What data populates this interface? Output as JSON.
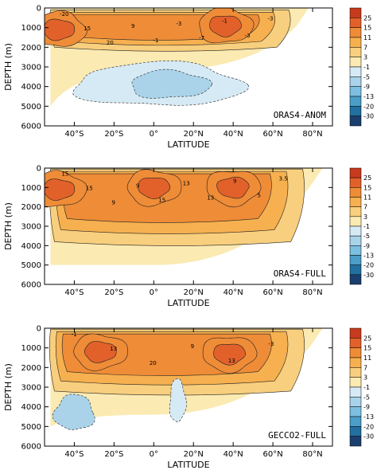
{
  "chart_data": [
    {
      "type": "heatmap",
      "panel_label": "ORAS4-ANOM",
      "xlabel": "LATITUDE",
      "ylabel": "DEPTH (m)",
      "x_range": [
        -55,
        90
      ],
      "y_range": [
        0,
        6000
      ],
      "y_inverted": true,
      "x_ticks": [
        -40,
        -20,
        0,
        20,
        40,
        60,
        80
      ],
      "x_tick_labels": [
        "40°S",
        "20°S",
        "0°",
        "20°N",
        "40°N",
        "60°N",
        "80°N"
      ],
      "y_ticks": [
        0,
        1000,
        2000,
        3000,
        4000,
        5000,
        6000
      ],
      "y_tick_labels": [
        "0",
        "1000",
        "2000",
        "3000",
        "4000",
        "5000",
        "6000"
      ],
      "contour_labels": [
        "-20",
        "15",
        "20",
        "9",
        "-1",
        "-3",
        "-7",
        "-1",
        "-3",
        "-3"
      ],
      "colorbar_levels": [
        "25",
        "15",
        "11",
        "7",
        "3",
        "-1",
        "-5",
        "-9",
        "-13",
        "-20",
        "-30"
      ],
      "features": [
        {
          "kind": "positive",
          "lat": [
            -52,
            68
          ],
          "depth": [
            100,
            2000
          ],
          "peak": 15
        },
        {
          "kind": "core",
          "lat": -48,
          "depth": 1100,
          "value": 20
        },
        {
          "kind": "core",
          "lat": 36,
          "depth": 900,
          "value": 20
        },
        {
          "kind": "negative",
          "lat": [
            -40,
            45
          ],
          "depth": [
            2800,
            5000
          ],
          "value": -5
        },
        {
          "kind": "negative",
          "lat": [
            -12,
            28
          ],
          "depth": [
            3200,
            4600
          ],
          "value": -9
        }
      ]
    },
    {
      "type": "heatmap",
      "panel_label": "ORAS4-FULL",
      "xlabel": "LATITUDE",
      "ylabel": "DEPTH (m)",
      "x_range": [
        -55,
        90
      ],
      "y_range": [
        0,
        6000
      ],
      "y_inverted": true,
      "x_ticks": [
        -40,
        -20,
        0,
        20,
        40,
        60,
        80
      ],
      "x_tick_labels": [
        "40°S",
        "20°S",
        "0°",
        "20°N",
        "40°N",
        "60°N",
        "80°N"
      ],
      "y_ticks": [
        0,
        1000,
        2000,
        3000,
        4000,
        5000,
        6000
      ],
      "y_tick_labels": [
        "0",
        "1000",
        "2000",
        "3000",
        "4000",
        "5000",
        "6000"
      ],
      "contour_labels": [
        "15",
        "15",
        "9",
        "9",
        "15",
        "13",
        "13",
        "9",
        "5",
        "3.5"
      ],
      "colorbar_levels": [
        "25",
        "15",
        "11",
        "7",
        "3",
        "-1",
        "-5",
        "-9",
        "-13",
        "-20",
        "-30"
      ],
      "features": [
        {
          "kind": "positive",
          "lat": [
            -52,
            75
          ],
          "depth": [
            50,
            3800
          ],
          "peak": 15
        },
        {
          "kind": "core",
          "lat": -48,
          "depth": 1100,
          "value": 20
        },
        {
          "kind": "core",
          "lat": 0,
          "depth": 1000,
          "value": 20
        },
        {
          "kind": "core",
          "lat": 40,
          "depth": 1000,
          "value": 20
        }
      ]
    },
    {
      "type": "heatmap",
      "panel_label": "GECCO2-FULL",
      "xlabel": "LATITUDE",
      "ylabel": "DEPTH (m)",
      "x_range": [
        -55,
        90
      ],
      "y_range": [
        0,
        6000
      ],
      "y_inverted": true,
      "x_ticks": [
        -40,
        -20,
        0,
        20,
        40,
        60,
        80
      ],
      "x_tick_labels": [
        "40°S",
        "20°S",
        "0°",
        "20°N",
        "40°N",
        "60°N",
        "80°N"
      ],
      "y_ticks": [
        0,
        1000,
        2000,
        3000,
        4000,
        5000,
        6000
      ],
      "y_tick_labels": [
        "0",
        "1000",
        "2000",
        "3000",
        "4000",
        "5000",
        "6000"
      ],
      "contour_labels": [
        "-1",
        "13",
        "20",
        "9",
        "13",
        "-3"
      ],
      "colorbar_levels": [
        "25",
        "15",
        "11",
        "7",
        "3",
        "-1",
        "-5",
        "-9",
        "-13",
        "-20",
        "-30"
      ],
      "features": [
        {
          "kind": "positive",
          "lat": [
            -52,
            75
          ],
          "depth": [
            50,
            3200
          ],
          "peak": 13
        },
        {
          "kind": "core",
          "lat": -27,
          "depth": 1200,
          "value": 15
        },
        {
          "kind": "core",
          "lat": 38,
          "depth": 1300,
          "value": 20
        },
        {
          "kind": "negative",
          "lat": [
            -50,
            -30
          ],
          "depth": [
            3400,
            5200
          ],
          "value": -9
        },
        {
          "kind": "negative",
          "lat": [
            8,
            16
          ],
          "depth": [
            2600,
            4800
          ],
          "value": -5
        }
      ]
    }
  ],
  "colorbar": {
    "colors": [
      "#c83a1d",
      "#e2612a",
      "#ef8c37",
      "#f6b04f",
      "#f8cf7e",
      "#fbeab2",
      "#d6eaf5",
      "#aad3ea",
      "#7cbfe0",
      "#4a9ec8",
      "#2270a0",
      "#1a3f6e"
    ]
  }
}
